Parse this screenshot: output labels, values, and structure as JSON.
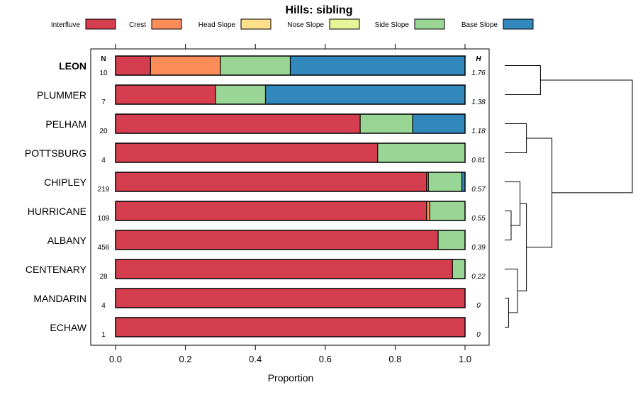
{
  "chart_data": {
    "type": "stacked-bar-horizontal",
    "title": "Hills: sibling",
    "xlabel": "Proportion",
    "xlim": [
      0,
      1
    ],
    "x_ticks": [
      "0.0",
      "0.2",
      "0.4",
      "0.6",
      "0.8",
      "1.0"
    ],
    "n_header": "N",
    "h_header": "H",
    "legend_position": "top",
    "categories": [
      {
        "name": "Interfluve",
        "color": "#d53e4f"
      },
      {
        "name": "Crest",
        "color": "#fc8d59"
      },
      {
        "name": "Head Slope",
        "color": "#fee08b"
      },
      {
        "name": "Nose Slope",
        "color": "#e6f598"
      },
      {
        "name": "Side Slope",
        "color": "#99d594"
      },
      {
        "name": "Base Slope",
        "color": "#3288bd"
      }
    ],
    "rows": [
      {
        "label": "LEON",
        "bold": true,
        "n": "10",
        "h": "1.76",
        "values": [
          0.1,
          0.2,
          0.0,
          0.0,
          0.2,
          0.5
        ]
      },
      {
        "label": "PLUMMER",
        "bold": false,
        "n": "7",
        "h": "1.38",
        "values": [
          0.286,
          0.0,
          0.0,
          0.0,
          0.143,
          0.571
        ]
      },
      {
        "label": "PELHAM",
        "bold": false,
        "n": "20",
        "h": "1.18",
        "values": [
          0.7,
          0.0,
          0.0,
          0.0,
          0.15,
          0.15
        ]
      },
      {
        "label": "POTTSBURG",
        "bold": false,
        "n": "4",
        "h": "0.81",
        "values": [
          0.75,
          0.0,
          0.0,
          0.0,
          0.25,
          0.0
        ]
      },
      {
        "label": "CHIPLEY",
        "bold": false,
        "n": "219",
        "h": "0.57",
        "values": [
          0.89,
          0.005,
          0.0,
          0.0,
          0.096,
          0.009
        ]
      },
      {
        "label": "HURRICANE",
        "bold": false,
        "n": "109",
        "h": "0.55",
        "values": [
          0.89,
          0.009,
          0.0,
          0.0,
          0.101,
          0.0
        ]
      },
      {
        "label": "ALBANY",
        "bold": false,
        "n": "456",
        "h": "0.39",
        "values": [
          0.923,
          0.0,
          0.0,
          0.0,
          0.077,
          0.0
        ]
      },
      {
        "label": "CENTENARY",
        "bold": false,
        "n": "28",
        "h": "0.22",
        "values": [
          0.964,
          0.0,
          0.0,
          0.0,
          0.036,
          0.0
        ]
      },
      {
        "label": "MANDARIN",
        "bold": false,
        "n": "4",
        "h": "0",
        "values": [
          1.0,
          0.0,
          0.0,
          0.0,
          0.0,
          0.0
        ]
      },
      {
        "label": "ECHAW",
        "bold": false,
        "n": "1",
        "h": "0",
        "values": [
          1.0,
          0.0,
          0.0,
          0.0,
          0.0,
          0.0
        ]
      }
    ],
    "dendrogram": {
      "type": "hierarchical-clustering",
      "merges": [
        {
          "id": "A",
          "left": "MANDARIN",
          "right": "ECHAW",
          "height": 0.03
        },
        {
          "id": "B",
          "left": "CENTENARY",
          "right": "A",
          "height": 0.1
        },
        {
          "id": "C",
          "left": "HURRICANE",
          "right": "ALBANY",
          "height": 0.05
        },
        {
          "id": "D",
          "left": "CHIPLEY",
          "right": "C",
          "height": 0.12
        },
        {
          "id": "E",
          "left": "D",
          "right": "B",
          "height": 0.17
        },
        {
          "id": "F",
          "left": "PELHAM",
          "right": "POTTSBURG",
          "height": 0.17
        },
        {
          "id": "G",
          "left": "F",
          "right": "E",
          "height": 0.37
        },
        {
          "id": "H",
          "left": "LEON",
          "right": "PLUMMER",
          "height": 0.28
        },
        {
          "id": "I",
          "left": "H",
          "right": "G",
          "height": 1.0
        }
      ]
    }
  }
}
